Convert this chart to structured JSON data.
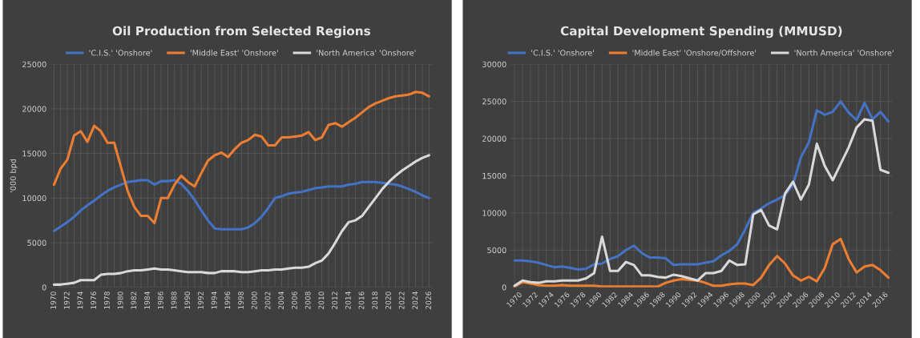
{
  "chart_data": [
    {
      "type": "line",
      "title": "Oil Production from Selected Regions",
      "ylabel": "'000 bpd",
      "categories": [
        "1970",
        null,
        "1972",
        null,
        "1974",
        null,
        "1976",
        null,
        "1978",
        null,
        "1980",
        null,
        "1982",
        null,
        "1984",
        null,
        "1986",
        null,
        "1988",
        null,
        "1990",
        null,
        "1992",
        null,
        "1994",
        null,
        "1996",
        null,
        "1998",
        null,
        "2000",
        null,
        "2002",
        null,
        "2004",
        null,
        "2006",
        null,
        "2008",
        null,
        "2010",
        null,
        "2012",
        null,
        "2014",
        null,
        "2016",
        null,
        "2018",
        null,
        "2020",
        null,
        "2022",
        null,
        "2024",
        null,
        "2026"
      ],
      "ylim": [
        0,
        25000
      ],
      "yticks": [
        0,
        5000,
        10000,
        15000,
        20000,
        25000
      ],
      "grid": true,
      "legend": "top",
      "series": [
        {
          "name": "'C.I.S.' 'Onshore'",
          "color": "#4472c4",
          "values": [
            6300,
            6800,
            7300,
            7900,
            8600,
            9200,
            9700,
            10300,
            10800,
            11200,
            11500,
            11800,
            11900,
            12000,
            12000,
            11500,
            11900,
            11900,
            12000,
            11600,
            10800,
            9800,
            8600,
            7500,
            6600,
            6500,
            6500,
            6500,
            6500,
            6700,
            7200,
            7900,
            8900,
            10000,
            10200,
            10500,
            10600,
            10700,
            10900,
            11100,
            11200,
            11300,
            11300,
            11300,
            11500,
            11600,
            11800,
            11800,
            11800,
            11700,
            11600,
            11500,
            11300,
            11000,
            10700,
            10300,
            10000
          ]
        },
        {
          "name": "'Middle East' 'Onshore'",
          "color": "#ed7d31",
          "values": [
            11500,
            13300,
            14300,
            17000,
            17500,
            16300,
            18100,
            17500,
            16200,
            16200,
            13500,
            10800,
            9000,
            8000,
            8000,
            7200,
            10000,
            10000,
            11500,
            12500,
            11800,
            11300,
            12800,
            14200,
            14800,
            15100,
            14600,
            15500,
            16200,
            16500,
            17100,
            16900,
            15900,
            15900,
            16800,
            16800,
            16900,
            17000,
            17400,
            16500,
            16800,
            18200,
            18400,
            18000,
            18500,
            19000,
            19600,
            20200,
            20600,
            20900,
            21200,
            21400,
            21500,
            21600,
            21900,
            21800,
            21400
          ]
        },
        {
          "name": "'North America' 'Onshore'",
          "color": "#d9d9d9",
          "values": [
            300,
            300,
            400,
            500,
            800,
            800,
            800,
            1400,
            1500,
            1500,
            1600,
            1800,
            1900,
            1900,
            2000,
            2100,
            2000,
            2000,
            1900,
            1800,
            1700,
            1700,
            1700,
            1600,
            1600,
            1800,
            1800,
            1800,
            1700,
            1700,
            1800,
            1900,
            1900,
            2000,
            2000,
            2100,
            2200,
            2200,
            2300,
            2700,
            3000,
            3800,
            5000,
            6300,
            7300,
            7500,
            8000,
            9000,
            10000,
            11000,
            11800,
            12500,
            13100,
            13600,
            14100,
            14500,
            14800
          ]
        }
      ]
    },
    {
      "type": "line",
      "title": "Capital Development Spending (MMUSD)",
      "categories": [
        "1970",
        null,
        "1972",
        null,
        "1974",
        null,
        "1976",
        null,
        "1978",
        null,
        "1980",
        null,
        "1982",
        null,
        "1984",
        null,
        "1986",
        null,
        "1988",
        null,
        "1990",
        null,
        "1992",
        null,
        "1994",
        null,
        "1996",
        null,
        "1998",
        null,
        "2000",
        null,
        "2002",
        null,
        "2004",
        null,
        "2006",
        null,
        "2008",
        null,
        "2010",
        null,
        "2012",
        null,
        "2014",
        null,
        "2016",
        null
      ],
      "ylim": [
        0,
        30000
      ],
      "yticks": [
        0,
        5000,
        10000,
        15000,
        20000,
        25000,
        30000
      ],
      "grid": true,
      "legend": "top",
      "series": [
        {
          "name": "'C.I.S.' 'Onshore'",
          "color": "#4472c4",
          "values": [
            3600,
            3600,
            3500,
            3300,
            3000,
            2700,
            2800,
            2600,
            2400,
            2500,
            3100,
            3200,
            3800,
            4200,
            5000,
            5600,
            4600,
            4000,
            4000,
            3900,
            3000,
            3100,
            3100,
            3100,
            3300,
            3500,
            4300,
            4900,
            5800,
            7800,
            10000,
            10600,
            11300,
            11800,
            12400,
            13800,
            17500,
            19500,
            23800,
            23200,
            23600,
            25000,
            23500,
            22500,
            24800,
            22600,
            23600,
            22300
          ]
        },
        {
          "name": "'Middle East' 'Onshore/Offshore'",
          "color": "#ed7d31",
          "values": [
            100,
            700,
            500,
            300,
            200,
            200,
            300,
            200,
            200,
            200,
            200,
            100,
            100,
            100,
            100,
            100,
            100,
            100,
            100,
            600,
            900,
            1100,
            1000,
            900,
            600,
            200,
            200,
            400,
            500,
            500,
            300,
            1300,
            3000,
            4200,
            3200,
            1600,
            900,
            1400,
            800,
            2600,
            5800,
            6500,
            3800,
            2000,
            2800,
            3000,
            2300,
            1300
          ]
        },
        {
          "name": "'North America' 'Onshore'",
          "color": "#d9d9d9",
          "values": [
            200,
            900,
            700,
            600,
            800,
            800,
            900,
            900,
            900,
            1200,
            1900,
            6800,
            2200,
            2200,
            3400,
            3000,
            1600,
            1600,
            1400,
            1300,
            1700,
            1500,
            1200,
            900,
            1900,
            1900,
            2200,
            3600,
            3000,
            3100,
            9800,
            10400,
            8300,
            7800,
            12600,
            14200,
            11800,
            13800,
            19300,
            16300,
            14400,
            16600,
            18800,
            21500,
            22600,
            22400,
            15800,
            15400
          ]
        }
      ]
    }
  ]
}
